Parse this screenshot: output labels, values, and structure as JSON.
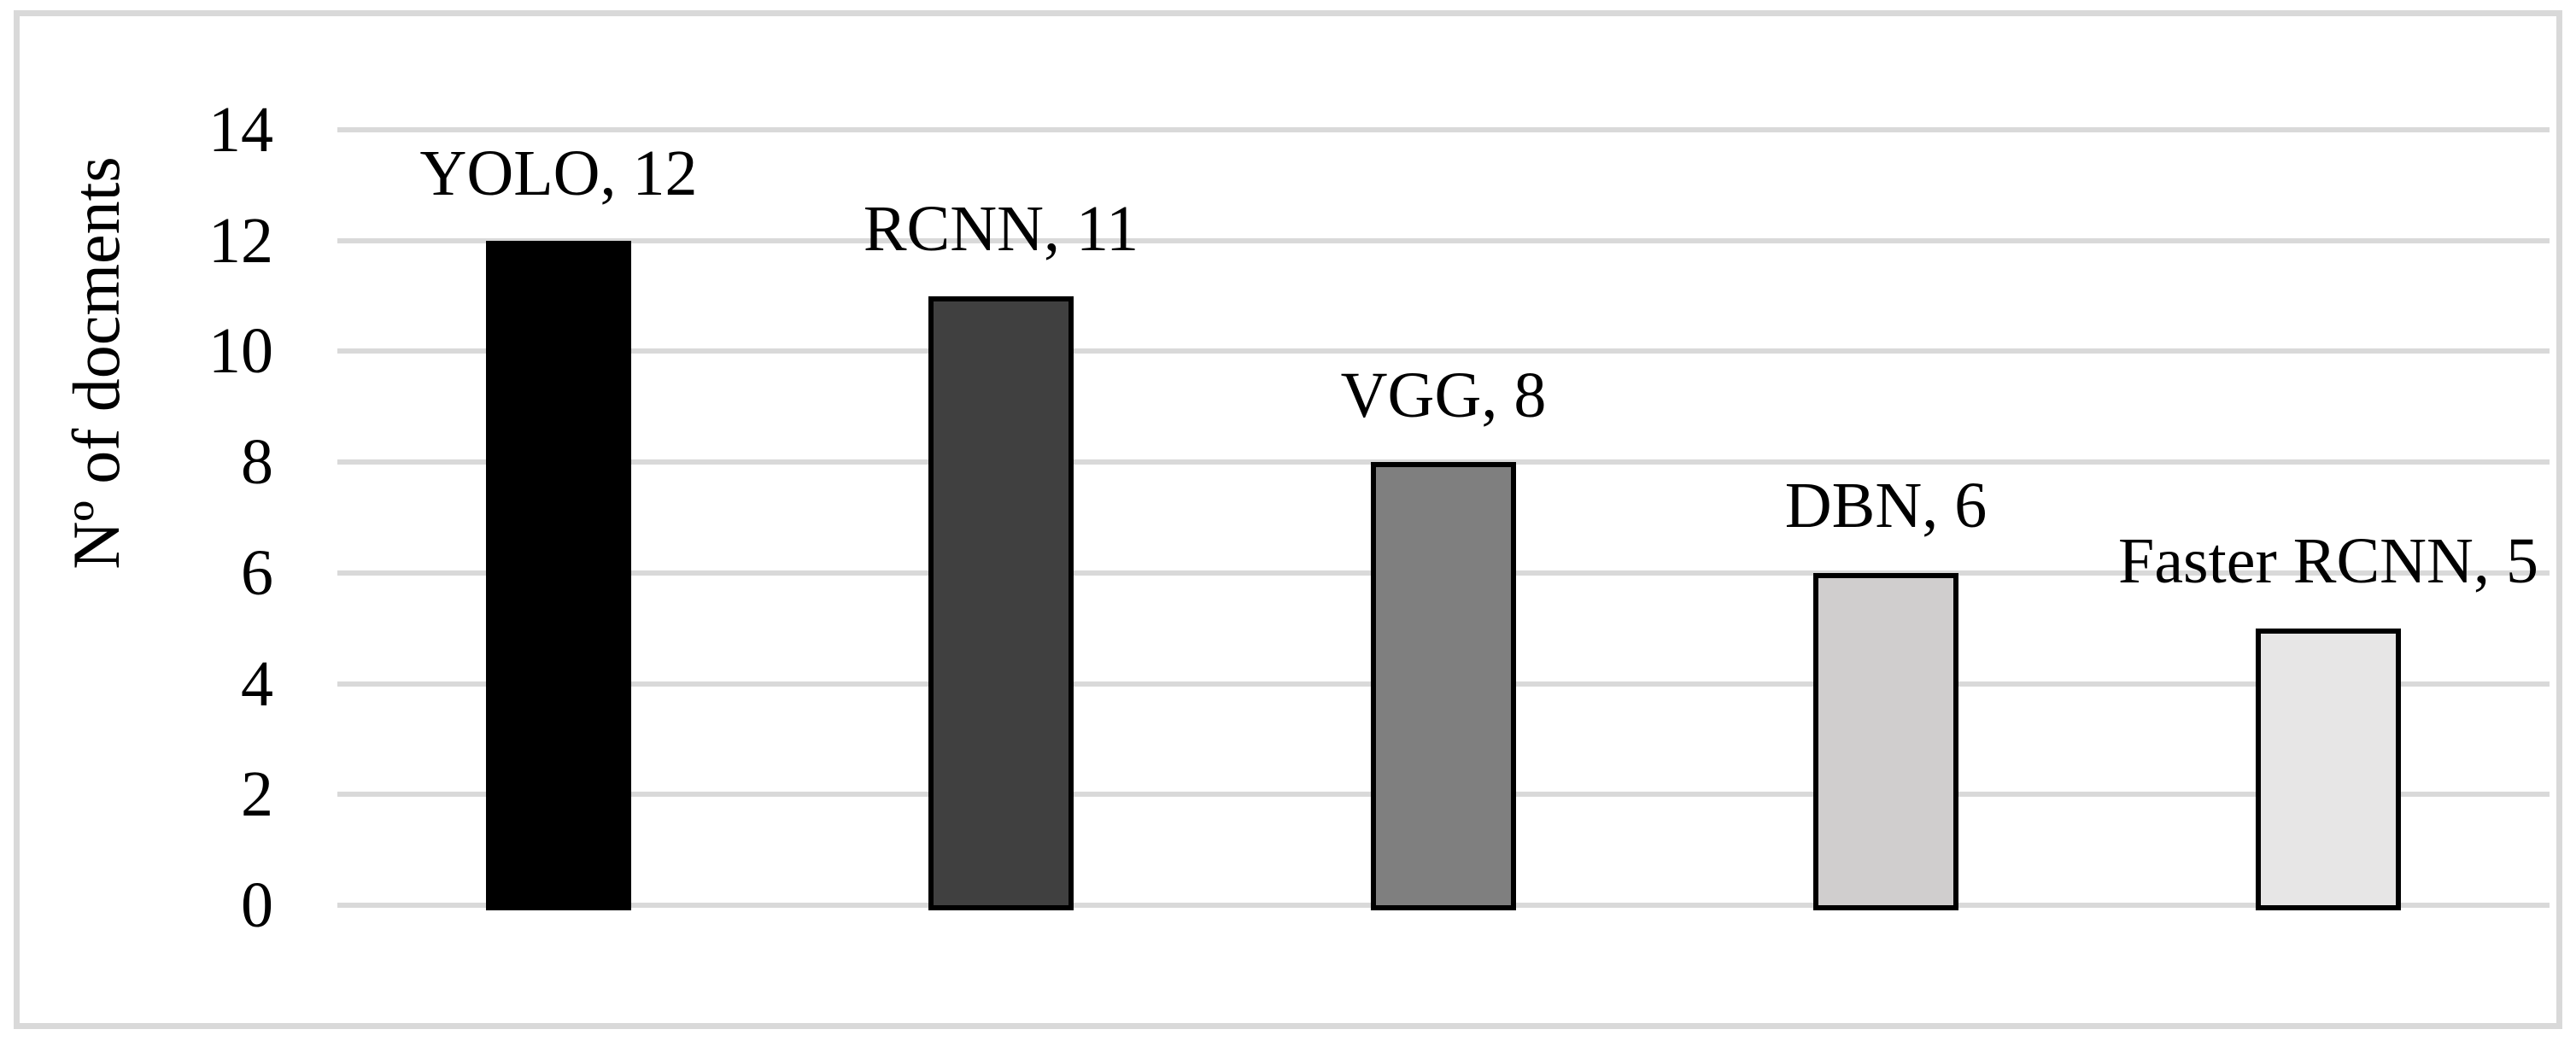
{
  "figure": {
    "background_color": "#ffffff",
    "frame_color": "#d9d9d9"
  },
  "chart_data": {
    "type": "bar",
    "ylabel": "Nº of docments",
    "categories": [
      "YOLO",
      "RCNN",
      "VGG",
      "DBN",
      "Faster RCNN"
    ],
    "values": [
      12,
      11,
      8,
      6,
      5
    ],
    "data_labels": [
      "YOLO, 12",
      "RCNN, 11",
      "VGG, 8",
      "DBN, 6",
      "Faster RCNN, 5"
    ],
    "bar_colors": [
      "#000000",
      "#404040",
      "#7f7f7f",
      "#d0cece",
      "#e7e6e6"
    ],
    "bar_border_color": "#000000",
    "y_ticks": [
      0,
      2,
      4,
      6,
      8,
      10,
      12,
      14
    ],
    "ylim": [
      0,
      14
    ],
    "grid": true,
    "gridline_color": "#d9d9d9",
    "legend": "none",
    "x_tick_labels": []
  }
}
